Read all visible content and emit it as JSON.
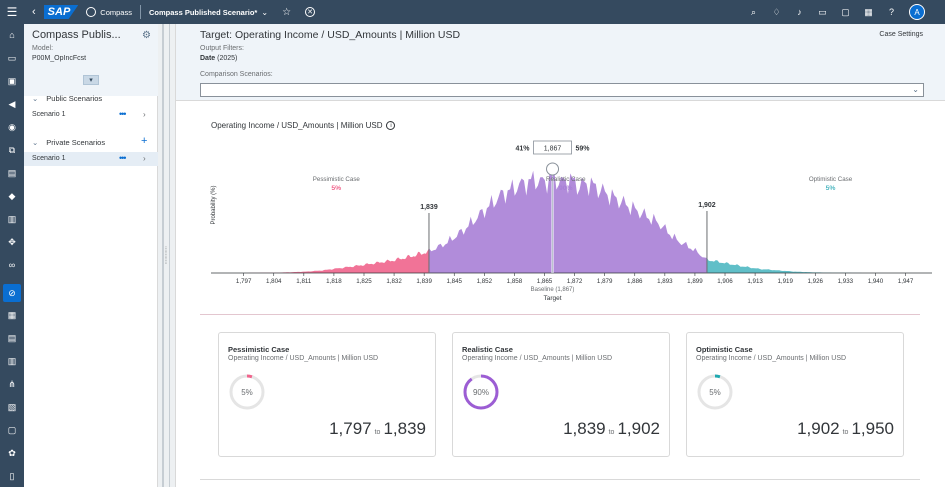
{
  "shell": {
    "logo": "SAP",
    "app_name": "Compass",
    "story_name": "Compass Published Scenario*",
    "avatar_initial": "A",
    "icons": [
      "search-icon",
      "lightbulb-icon",
      "bell-icon",
      "chat-icon",
      "feedback-icon",
      "table-icon",
      "help-icon"
    ]
  },
  "sidebar": {
    "title": "Compass Publis...",
    "model_label": "Model:",
    "model_value": "P00M_OpIncFcst",
    "public_section": "Public Scenarios",
    "public_items": [
      {
        "label": "Scenario 1"
      }
    ],
    "private_section": "Private Scenarios",
    "private_items": [
      {
        "label": "Scenario 1"
      }
    ]
  },
  "header": {
    "title": "Target: Operating Income / USD_Amounts | Million USD",
    "case_settings": "Case Settings",
    "output_filters_label": "Output Filters:",
    "date_label": "Date",
    "date_value": "(2025)",
    "comparison_label": "Comparison Scenarios:",
    "comparison_value": ""
  },
  "chart_data": {
    "type": "area",
    "title": "Operating Income / USD_Amounts | Million USD",
    "ylabel": "Probability (%)",
    "xlabel": "Target",
    "baseline_label": "Baseline (1,867)",
    "x_ticks": [
      "1,797",
      "1,804",
      "1,811",
      "1,818",
      "1,825",
      "1,832",
      "1,839",
      "1,845",
      "1,852",
      "1,858",
      "1,865",
      "1,872",
      "1,879",
      "1,886",
      "1,893",
      "1,899",
      "1,906",
      "1,913",
      "1,919",
      "1,926",
      "1,933",
      "1,940",
      "1,947"
    ],
    "xlim": [
      1793,
      1953
    ],
    "slider": {
      "left_pct": "41%",
      "value": "1,867",
      "right_pct": "59%"
    },
    "markers": [
      {
        "value": 1839,
        "label": "1,839"
      },
      {
        "value": 1867,
        "label": ""
      },
      {
        "value": 1902,
        "label": "1,902"
      }
    ],
    "regions": [
      {
        "name": "Pessimistic Case",
        "pct": "5%",
        "color": "#f0648c",
        "range": [
          1797,
          1839
        ]
      },
      {
        "name": "Realistic Case",
        "pct": "90%",
        "color": "#a87fd6",
        "range": [
          1839,
          1902
        ]
      },
      {
        "name": "Optimistic Case",
        "pct": "5%",
        "color": "#4fb8c2",
        "range": [
          1902,
          1950
        ]
      }
    ],
    "series": [
      {
        "x": [
          1797,
          1805,
          1811,
          1815,
          1819,
          1823,
          1827,
          1831,
          1835,
          1839,
          1843,
          1847,
          1851,
          1855,
          1859,
          1863,
          1865,
          1867,
          1869,
          1871,
          1873,
          1875,
          1879,
          1883,
          1887,
          1891,
          1895,
          1899,
          1902,
          1906,
          1910,
          1914,
          1918,
          1922,
          1926,
          1930,
          1934,
          1938,
          1942,
          1947
        ],
        "y": [
          0,
          0.1,
          0.4,
          0.8,
          1.5,
          2.2,
          3,
          3.8,
          5,
          6.5,
          9,
          13,
          18,
          23,
          26,
          28,
          27,
          29,
          27,
          28,
          26,
          27,
          24,
          21,
          18,
          15,
          10,
          7,
          4,
          3,
          2,
          1.2,
          0.8,
          0.4,
          0.2,
          0.1,
          0.05,
          0,
          0,
          0
        ]
      }
    ]
  },
  "cards": [
    {
      "title": "Pessimistic Case",
      "subtitle": "Operating Income / USD_Amounts | Million USD",
      "pct": "5%",
      "pct_value": 0.05,
      "color": "#f0648c",
      "from": "1,797",
      "to_label": "to",
      "to": "1,839"
    },
    {
      "title": "Realistic Case",
      "subtitle": "Operating Income / USD_Amounts | Million USD",
      "pct": "90%",
      "pct_value": 0.9,
      "color": "#9c5dd4",
      "from": "1,839",
      "to_label": "to",
      "to": "1,902"
    },
    {
      "title": "Optimistic Case",
      "subtitle": "Operating Income / USD_Amounts | Million USD",
      "pct": "5%",
      "pct_value": 0.05,
      "color": "#1fa9b0",
      "from": "1,902",
      "to_label": "to",
      "to": "1,950"
    }
  ]
}
